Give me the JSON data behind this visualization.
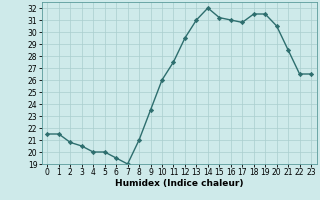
{
  "x": [
    0,
    1,
    2,
    3,
    4,
    5,
    6,
    7,
    8,
    9,
    10,
    11,
    12,
    13,
    14,
    15,
    16,
    17,
    18,
    19,
    20,
    21,
    22,
    23
  ],
  "y": [
    21.5,
    21.5,
    20.8,
    20.5,
    20.0,
    20.0,
    19.5,
    19.0,
    21.0,
    23.5,
    26.0,
    27.5,
    29.5,
    31.0,
    32.0,
    31.2,
    31.0,
    30.8,
    31.5,
    31.5,
    30.5,
    28.5,
    26.5,
    26.5
  ],
  "xlabel": "Humidex (Indice chaleur)",
  "ylim": [
    19,
    32.5
  ],
  "xlim": [
    -0.5,
    23.5
  ],
  "yticks": [
    19,
    20,
    21,
    22,
    23,
    24,
    25,
    26,
    27,
    28,
    29,
    30,
    31,
    32
  ],
  "xticks": [
    0,
    1,
    2,
    3,
    4,
    5,
    6,
    7,
    8,
    9,
    10,
    11,
    12,
    13,
    14,
    15,
    16,
    17,
    18,
    19,
    20,
    21,
    22,
    23
  ],
  "line_color": "#2d6e6e",
  "marker": "D",
  "markersize": 2.2,
  "linewidth": 1.0,
  "bg_color": "#ceeaea",
  "grid_color": "#aacece",
  "fig_bg": "#ceeaea",
  "tick_fontsize": 5.5,
  "xlabel_fontsize": 6.5
}
